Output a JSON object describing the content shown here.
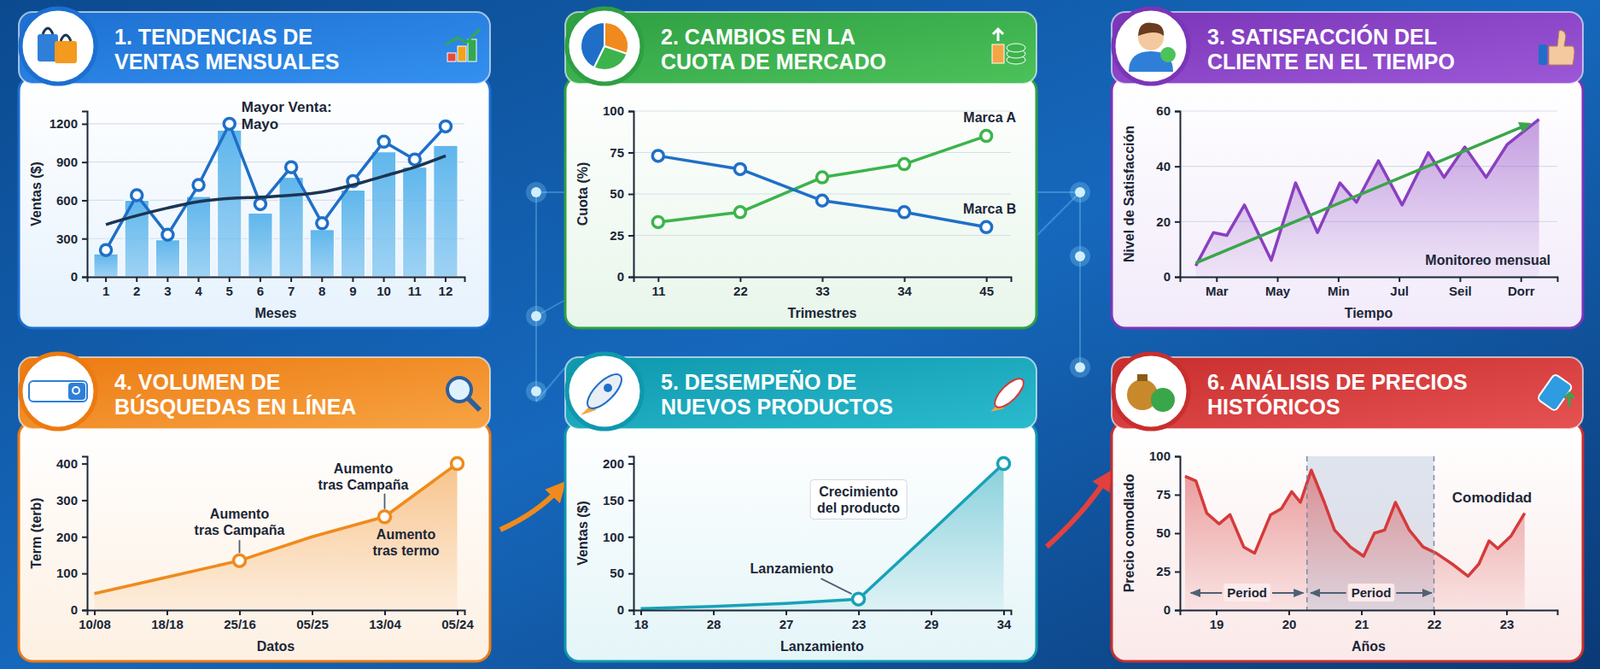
{
  "chart_data": [
    {
      "type": "bar",
      "title": "1. TENDENCIAS DE VENTAS MENSUALES",
      "x_label": "Meses",
      "y_label": "Ventas ($)",
      "categories": [
        "1",
        "2",
        "3",
        "4",
        "5",
        "6",
        "7",
        "8",
        "9",
        "10",
        "11",
        "12"
      ],
      "series": [
        {
          "type": "bar",
          "color": "#5fb6ec",
          "values": [
            180,
            600,
            290,
            630,
            1150,
            500,
            780,
            370,
            680,
            980,
            860,
            1030
          ]
        },
        {
          "type": "line",
          "color": "#1f6fc8",
          "marker": "circle",
          "values": [
            210,
            640,
            330,
            720,
            1200,
            570,
            860,
            420,
            750,
            1060,
            920,
            1180
          ]
        },
        {
          "type": "line",
          "color": "#1b3553",
          "line_style": "smooth",
          "values": [
            410,
            480,
            540,
            590,
            615,
            625,
            640,
            665,
            720,
            790,
            860,
            950
          ]
        }
      ],
      "ylim": [
        0,
        1300
      ],
      "yticks": [
        0,
        300,
        600,
        900,
        1200
      ],
      "grid": true,
      "annotations": [
        {
          "text": "Mayor Venta: Mayo",
          "x": "5"
        }
      ]
    },
    {
      "type": "line",
      "title": "2. CAMBIOS EN LA CUOTA DE MERCADO",
      "x_label": "Trimestres",
      "y_label": "Cuota (%)",
      "categories": [
        "11",
        "22",
        "33",
        "34",
        "45"
      ],
      "series": [
        {
          "name": "Marca A",
          "color": "#3cb44b",
          "marker": "circle",
          "values": [
            33,
            39,
            60,
            68,
            85
          ]
        },
        {
          "name": "Marca B",
          "color": "#1f6fc8",
          "marker": "circle",
          "values": [
            73,
            65,
            46,
            39,
            30
          ]
        }
      ],
      "ylim": [
        0,
        100
      ],
      "yticks": [
        0,
        25,
        50,
        75,
        100
      ],
      "grid": true
    },
    {
      "type": "line",
      "title": "3. SATISFACCIÓN DEL CLIENTE EN EL TIEMPO",
      "x_label": "Tiempo",
      "y_label": "Nivel de Satisfacción",
      "series": [
        {
          "type": "area",
          "color": "#8a3fc0",
          "x": [
            0.66,
            0.95,
            1.17,
            1.46,
            1.9,
            2.3,
            2.66,
            3.03,
            3.3,
            3.66,
            4.05,
            4.48,
            4.74,
            5.08,
            5.43,
            5.78,
            6.3
          ],
          "values": [
            4,
            16,
            15,
            26,
            6,
            34,
            16,
            34,
            27,
            42,
            26,
            45,
            36,
            47,
            36,
            48,
            57
          ]
        },
        {
          "type": "line",
          "color": "#3aa64a",
          "marker": "arrow",
          "x": [
            0.66,
            6.1
          ],
          "values": [
            5,
            55
          ]
        }
      ],
      "xlim": [
        0.4,
        6.6
      ],
      "xticks": [
        {
          "value": 1,
          "label": "Mar"
        },
        {
          "value": 2,
          "label": "May"
        },
        {
          "value": 3,
          "label": "Min"
        },
        {
          "value": 4,
          "label": "Jul"
        },
        {
          "value": 5,
          "label": "Seil"
        },
        {
          "value": 6,
          "label": "Dorr"
        }
      ],
      "ylim": [
        0,
        60
      ],
      "yticks": [
        0,
        20,
        40,
        60
      ],
      "grid": true,
      "annotations": [
        {
          "text": "Monitoreo mensual"
        }
      ]
    },
    {
      "type": "area",
      "title": "4. VOLUMEN DE BÚSQUEDAS EN LÍNEA",
      "x_label": "Datos",
      "y_label": "Term (terb)",
      "categories": [
        "10/08",
        "18/18",
        "25/16",
        "05/25",
        "13/04",
        "05/24"
      ],
      "series": [
        {
          "color": "#f08a1c",
          "values": [
            45,
            90,
            135,
            200,
            255,
            400
          ]
        }
      ],
      "ylim": [
        0,
        420
      ],
      "yticks": [
        0,
        100,
        200,
        300,
        400
      ],
      "grid": false,
      "annotations": [
        {
          "text": "Aumento tras Campaña",
          "x": "25/16"
        },
        {
          "text": "Aumento tras Campaña",
          "x": "13/04"
        },
        {
          "text": "Aumento tras termo",
          "x": "13/04"
        }
      ]
    },
    {
      "type": "area",
      "title": "5. DESEMPEÑO DE NUEVOS PRODUCTOS",
      "x_label": "Lanzamiento",
      "y_label": "Ventas ($)",
      "categories": [
        "18",
        "28",
        "27",
        "23",
        "29",
        "34"
      ],
      "series": [
        {
          "color": "#17a2b8",
          "values": [
            2,
            5,
            9,
            15,
            107,
            200
          ]
        }
      ],
      "ylim": [
        0,
        210
      ],
      "yticks": [
        0,
        50,
        100,
        150,
        200
      ],
      "grid": false,
      "annotations": [
        {
          "text": "Crecimiento del producto"
        },
        {
          "text": "Lanzamiento",
          "x": "23"
        }
      ]
    },
    {
      "type": "area",
      "title": "6. ANÁLISIS DE PRECIOS HISTÓRICOS",
      "x_label": "Años",
      "y_label": "Precio comodlado",
      "x": [
        18.57,
        18.72,
        18.87,
        19.04,
        19.19,
        19.38,
        19.53,
        19.75,
        19.9,
        20.04,
        20.16,
        20.31,
        20.49,
        20.63,
        20.85,
        21.03,
        21.18,
        21.32,
        21.47,
        21.66,
        21.85,
        22.03,
        22.25,
        22.47,
        22.62,
        22.76,
        22.88,
        23.06,
        23.25
      ],
      "series": [
        {
          "color": "#d63a3a",
          "values": [
            87,
            84,
            63,
            56,
            62,
            41,
            37,
            62,
            66,
            77,
            70,
            91,
            70,
            52,
            41,
            35,
            50,
            52,
            70,
            52,
            41,
            37,
            30,
            22,
            30,
            45,
            40,
            48,
            63
          ]
        }
      ],
      "xlim": [
        18.5,
        23.7
      ],
      "xticks": [
        19,
        20,
        21,
        22,
        23
      ],
      "ylim": [
        0,
        100
      ],
      "yticks": [
        0,
        25,
        50,
        75,
        100
      ],
      "grid": false,
      "shaded_range": [
        20.25,
        22.0
      ],
      "periods": [
        {
          "label": "Period",
          "start": 18.65,
          "end": 20.2
        },
        {
          "label": "Period",
          "start": 20.3,
          "end": 21.97
        }
      ],
      "annotations": [
        {
          "text": "Comodidad",
          "x": 22.8,
          "y": 73
        }
      ]
    }
  ]
}
